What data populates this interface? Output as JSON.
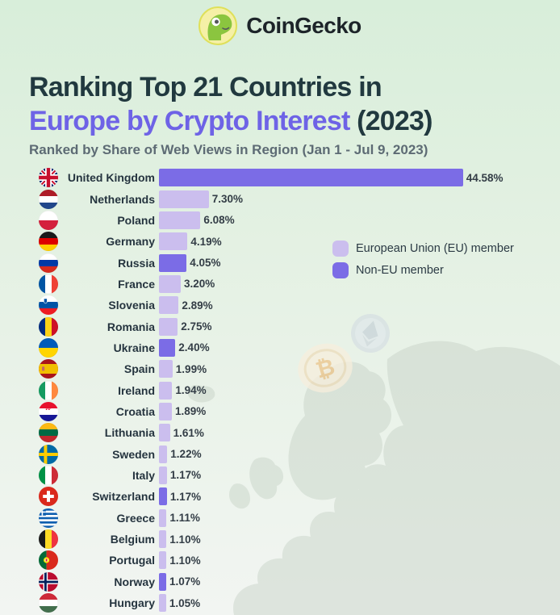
{
  "header": {
    "brand": "CoinGecko"
  },
  "title": {
    "line1": "Ranking Top 21 Countries in",
    "line2_highlight": "Europe by Crypto Interest",
    "line2_suffix": " (2023)"
  },
  "subtitle": "Ranked by Share of Web Views in Region (Jan 1 - Jul 9, 2023)",
  "legend": [
    {
      "key": "eu",
      "label": "European Union (EU) member",
      "color": "#cbbeee"
    },
    {
      "key": "non-eu",
      "label": "Non-EU member",
      "color": "#7b6ce6"
    }
  ],
  "colors": {
    "background_top": "#d8eeda",
    "background_bottom": "#f2f5f2",
    "title_dark": "#21393f",
    "title_accent": "#6e63e6",
    "subtitle_gray": "#5d6b74",
    "eu_bar": "#cbbeee",
    "non_eu_bar": "#7b6ce6",
    "map_gray": "#c2cdc2"
  },
  "chart_data": {
    "type": "bar",
    "orientation": "horizontal",
    "title": "Ranking Top 21 Countries in Europe by Crypto Interest (2023)",
    "subtitle": "Ranked by Share of Web Views in Region (Jan 1 - Jul 9, 2023)",
    "unit": "%",
    "xlim": [
      0,
      47
    ],
    "grid": false,
    "legend_position": "upper-right",
    "categories": [
      "United Kingdom",
      "Netherlands",
      "Poland",
      "Germany",
      "Russia",
      "France",
      "Slovenia",
      "Romania",
      "Ukraine",
      "Spain",
      "Ireland",
      "Croatia",
      "Lithuania",
      "Sweden",
      "Italy",
      "Switzerland",
      "Greece",
      "Belgium",
      "Portugal",
      "Norway",
      "Hungary"
    ],
    "values": [
      44.58,
      7.3,
      6.08,
      4.19,
      4.05,
      3.2,
      2.89,
      2.75,
      2.4,
      1.99,
      1.94,
      1.89,
      1.61,
      1.22,
      1.17,
      1.17,
      1.11,
      1.1,
      1.1,
      1.07,
      1.05
    ],
    "value_labels": [
      "44.58%",
      "7.30%",
      "6.08%",
      "4.19%",
      "4.05%",
      "3.20%",
      "2.89%",
      "2.75%",
      "2.40%",
      "1.99%",
      "1.94%",
      "1.89%",
      "1.61%",
      "1.22%",
      "1.17%",
      "1.17%",
      "1.11%",
      "1.10%",
      "1.10%",
      "1.07%",
      "1.05%"
    ],
    "membership": [
      "non-eu",
      "eu",
      "eu",
      "eu",
      "non-eu",
      "eu",
      "eu",
      "eu",
      "non-eu",
      "eu",
      "eu",
      "eu",
      "eu",
      "eu",
      "eu",
      "non-eu",
      "eu",
      "eu",
      "eu",
      "non-eu",
      "eu"
    ],
    "flags": [
      "gb",
      "nl",
      "pl",
      "de",
      "ru",
      "fr",
      "si",
      "ro",
      "ua",
      "es",
      "ie",
      "hr",
      "lt",
      "se",
      "it",
      "ch",
      "gr",
      "be",
      "pt",
      "no",
      "hu"
    ]
  }
}
